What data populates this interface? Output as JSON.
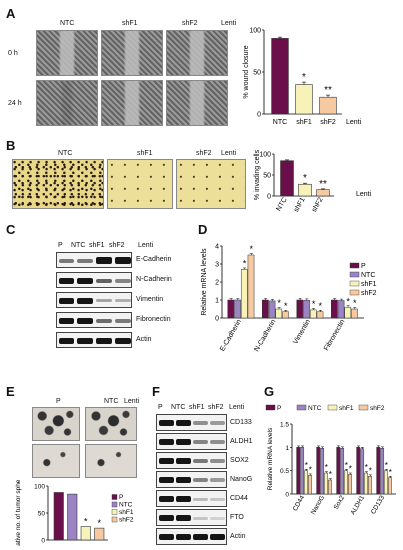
{
  "panels": {
    "A": {
      "label": "A",
      "columns": [
        "NTC",
        "shF1",
        "shF2"
      ],
      "suffix": "Lenti",
      "rows": [
        "0 h",
        "24 h"
      ]
    },
    "B": {
      "label": "B",
      "columns": [
        "NTC",
        "shF1",
        "shF2"
      ],
      "suffix": "Lenti"
    },
    "C": {
      "label": "C",
      "columns": [
        "P",
        "NTC",
        "shF1",
        "shF2"
      ],
      "suffix": "Lenti",
      "proteins": [
        "E-Cadherin",
        "N-Cadherin",
        "Vimentin",
        "Fibronectin",
        "Actin"
      ]
    },
    "D": {
      "label": "D"
    },
    "E": {
      "label": "E",
      "columns": [
        "P",
        "NTC"
      ],
      "suffix": "Lenti"
    },
    "F": {
      "label": "F",
      "columns": [
        "P",
        "NTC",
        "shF1",
        "shF2"
      ],
      "suffix": "Lenti",
      "proteins": [
        "CD133",
        "ALDH1",
        "SOX2",
        "NanoG",
        "CD44",
        "FTO",
        "Actin"
      ]
    },
    "G": {
      "label": "G"
    }
  },
  "chart_data": [
    {
      "id": "A",
      "type": "bar",
      "categories": [
        "NTC",
        "shF1",
        "shF2"
      ],
      "values": [
        90,
        35,
        20
      ],
      "errors": [
        1.5,
        3,
        2.5
      ],
      "colors": [
        "#6a0f4a",
        "#f6f2b8",
        "#f7c9a0"
      ],
      "ylabel": "% wound closure",
      "xsuffix": "Lenti",
      "ylim": [
        0,
        100
      ],
      "yticks": [
        0,
        50,
        100
      ],
      "significance": [
        "",
        "*",
        "**"
      ]
    },
    {
      "id": "B",
      "type": "bar",
      "categories": [
        "NTC",
        "shF1",
        "shF2"
      ],
      "values": [
        84,
        28,
        15
      ],
      "errors": [
        2,
        2.5,
        2
      ],
      "colors": [
        "#6a0f4a",
        "#f6f2b8",
        "#f7c9a0"
      ],
      "ylabel": "% invading cells",
      "xsuffix": "Lenti",
      "ylim": [
        0,
        100
      ],
      "yticks": [
        0,
        50,
        100
      ],
      "significance": [
        "",
        "*",
        "**"
      ]
    },
    {
      "id": "D",
      "type": "bar",
      "categories": [
        "E-Cadherin",
        "N-Cadherin",
        "Vimentin",
        "Fibronectin"
      ],
      "series": [
        {
          "name": "P",
          "values": [
            1.0,
            1.0,
            1.0,
            1.0
          ],
          "color": "#6a0f4a"
        },
        {
          "name": "NTC",
          "values": [
            1.0,
            0.95,
            0.98,
            0.97
          ],
          "color": "#9a84c4"
        },
        {
          "name": "shF1",
          "values": [
            2.7,
            0.5,
            0.45,
            0.6
          ],
          "color": "#f6f2b8"
        },
        {
          "name": "shF2",
          "values": [
            3.5,
            0.35,
            0.35,
            0.5
          ],
          "color": "#f7c9a0"
        }
      ],
      "ylabel": "Relative mRNA levels",
      "ylim": [
        0,
        4
      ],
      "yticks": [
        0,
        1,
        2,
        3,
        4
      ],
      "significance": [
        "",
        "",
        "*",
        "*"
      ],
      "legend": "top-right"
    },
    {
      "id": "E",
      "type": "bar",
      "categories": [
        "P",
        "NTC",
        "shF1",
        "shF2"
      ],
      "values": [
        88,
        85,
        25,
        22
      ],
      "colors": [
        "#6a0f4a",
        "#9a84c4",
        "#f6f2b8",
        "#f7c9a0"
      ],
      "ylabel": "Relative no. of tumor spheres",
      "ylim": [
        0,
        100
      ],
      "yticks": [
        0,
        50,
        100
      ],
      "significance": [
        "",
        "",
        "*",
        "*"
      ],
      "legend": "right"
    },
    {
      "id": "G",
      "type": "bar",
      "categories": [
        "CD44",
        "NanoG",
        "Sox2",
        "ALDH1",
        "CD133"
      ],
      "series": [
        {
          "name": "P",
          "values": [
            1.0,
            1.0,
            1.0,
            1.0,
            1.0
          ],
          "color": "#6a0f4a"
        },
        {
          "name": "NTC",
          "values": [
            1.0,
            0.98,
            0.98,
            0.97,
            0.98
          ],
          "color": "#9a84c4"
        },
        {
          "name": "shF1",
          "values": [
            0.5,
            0.45,
            0.5,
            0.45,
            0.5
          ],
          "color": "#f6f2b8"
        },
        {
          "name": "shF2",
          "values": [
            0.4,
            0.3,
            0.42,
            0.38,
            0.35
          ],
          "color": "#f7c9a0"
        }
      ],
      "ylabel": "Relative mRNA levels",
      "ylim": [
        0,
        1.5
      ],
      "yticks": [
        0,
        0.5,
        1,
        1.5
      ],
      "significance": [
        "",
        "",
        "*",
        "*"
      ],
      "legend": "top"
    }
  ]
}
